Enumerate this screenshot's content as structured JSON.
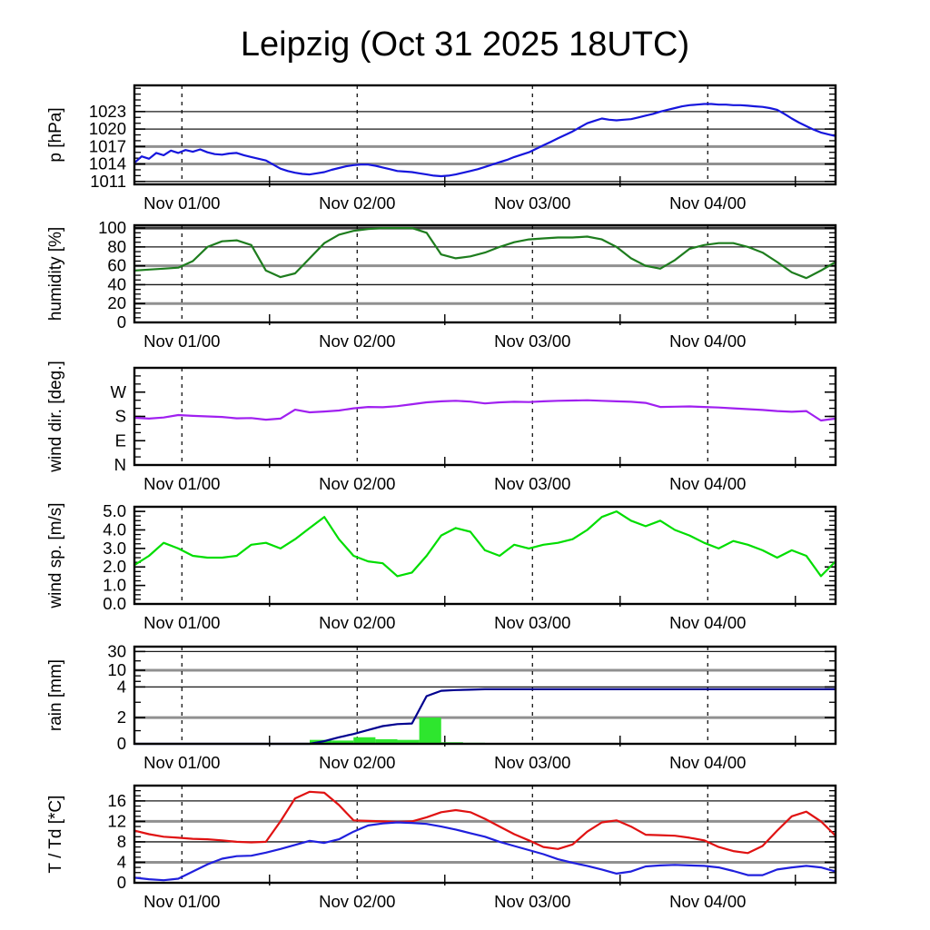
{
  "title": "Leipzig (Oct 31 2025 18UTC)",
  "colors": {
    "pressure": "#1616dd",
    "humidity": "#1e7d1e",
    "wind_dir": "#a020f0",
    "wind_speed": "#00dd00",
    "rain_line": "#00008f",
    "rain_bar": "#2ee62e",
    "temperature": "#e01212",
    "dewpoint": "#2020dd",
    "grid_thin": "#1a1a1a",
    "grid_thick": "#909090",
    "grid_dark": "#3a3a3a",
    "frame": "#000000"
  },
  "chart_data": {
    "type": "line",
    "title": "Leipzig (Oct 31 2025 18UTC)",
    "x_axis": {
      "hours_total": 96,
      "start": "Oct 31 18UTC",
      "day_tick_hours": [
        6.5,
        30.5,
        54.5,
        78.5
      ],
      "day_tick_labels": [
        "Nov 01/00",
        "Nov 02/00",
        "Nov 03/00",
        "Nov 04/00"
      ],
      "minor_tick_hours": [
        18.5,
        42.5,
        66.5,
        90.5
      ],
      "grid": "dashed-vertical-at-days"
    },
    "panels": [
      {
        "name": "pressure",
        "ylabel": "p [hPa]",
        "ylim": [
          1010.5,
          1027.5
        ],
        "minor_step": 1,
        "yticks": [
          {
            "v": 1011,
            "t": "1011",
            "g": "thin"
          },
          {
            "v": 1014,
            "t": "1014",
            "g": "thick"
          },
          {
            "v": 1017,
            "t": "1017",
            "g": "thick"
          },
          {
            "v": 1020,
            "t": "1020",
            "g": "thin"
          },
          {
            "v": 1023,
            "t": "1023",
            "g": "thin"
          }
        ],
        "series": [
          {
            "name": "pressure",
            "color_key": "pressure",
            "step_hours": 1,
            "values": [
              1014.2,
              1015.3,
              1014.9,
              1015.9,
              1015.5,
              1016.3,
              1015.9,
              1016.4,
              1016.1,
              1016.5,
              1016.0,
              1015.7,
              1015.6,
              1015.8,
              1015.9,
              1015.5,
              1015.2,
              1014.9,
              1014.6,
              1013.9,
              1013.2,
              1012.8,
              1012.5,
              1012.3,
              1012.2,
              1012.4,
              1012.6,
              1013.0,
              1013.3,
              1013.6,
              1013.8,
              1013.9,
              1013.9,
              1013.7,
              1013.4,
              1013.1,
              1012.8,
              1012.7,
              1012.6,
              1012.4,
              1012.2,
              1012.0,
              1011.9,
              1012.0,
              1012.2,
              1012.5,
              1012.8,
              1013.1,
              1013.5,
              1013.9,
              1014.3,
              1014.7,
              1015.2,
              1015.6,
              1016.0,
              1016.6,
              1017.2,
              1017.8,
              1018.4,
              1019.0,
              1019.6,
              1020.3,
              1021.0,
              1021.4,
              1021.8,
              1021.6,
              1021.5,
              1021.6,
              1021.7,
              1022.0,
              1022.3,
              1022.6,
              1023.0,
              1023.3,
              1023.6,
              1023.9,
              1024.1,
              1024.2,
              1024.3,
              1024.3,
              1024.2,
              1024.2,
              1024.1,
              1024.1,
              1024.0,
              1023.9,
              1023.8,
              1023.6,
              1023.3,
              1022.6,
              1021.8,
              1021.1,
              1020.5,
              1019.9,
              1019.4,
              1019.1,
              1018.8
            ]
          }
        ]
      },
      {
        "name": "humidity",
        "ylabel": "humidity [%]",
        "ylim": [
          0,
          103
        ],
        "minor_step": 5,
        "yticks": [
          {
            "v": 0,
            "t": "0",
            "g": "none"
          },
          {
            "v": 20,
            "t": "20",
            "g": "thick"
          },
          {
            "v": 40,
            "t": "40",
            "g": "thin"
          },
          {
            "v": 60,
            "t": "60",
            "g": "thick"
          },
          {
            "v": 80,
            "t": "80",
            "g": "thin"
          },
          {
            "v": 100,
            "t": "100",
            "g": "dark"
          }
        ],
        "series": [
          {
            "name": "humidity",
            "color_key": "humidity",
            "step_hours": 2,
            "values": [
              55,
              56,
              57,
              58,
              65,
              80,
              86,
              87,
              82,
              55,
              48,
              52,
              68,
              84,
              93,
              97,
              99,
              100,
              100,
              100,
              95,
              72,
              68,
              70,
              74,
              80,
              85,
              88,
              89,
              90,
              90,
              91,
              88,
              80,
              68,
              60,
              57,
              66,
              78,
              82,
              84,
              84,
              80,
              74,
              64,
              53,
              47,
              55,
              64
            ]
          }
        ]
      },
      {
        "name": "wind-direction",
        "ylabel": "wind dir. [deg.]",
        "ylim": [
          0,
          360
        ],
        "minor_step": 30,
        "yticks": [
          {
            "v": 0,
            "t": "N",
            "g": "none"
          },
          {
            "v": 90,
            "t": "E",
            "g": "none"
          },
          {
            "v": 180,
            "t": "S",
            "g": "none"
          },
          {
            "v": 270,
            "t": "W",
            "g": "none"
          }
        ],
        "series": [
          {
            "name": "wind-direction",
            "color_key": "wind_dir",
            "step_hours": 2,
            "values": [
              175,
              172,
              176,
              185,
              182,
              180,
              178,
              173,
              174,
              168,
              172,
              205,
              195,
              198,
              202,
              210,
              215,
              214,
              218,
              225,
              232,
              236,
              238,
              235,
              228,
              232,
              234,
              233,
              236,
              238,
              239,
              240,
              238,
              236,
              234,
              230,
              215,
              216,
              217,
              215,
              213,
              210,
              207,
              204,
              200,
              197,
              200,
              165,
              172
            ]
          }
        ]
      },
      {
        "name": "wind-speed",
        "ylabel": "wind sp. [m/s]",
        "ylim": [
          0,
          5.25
        ],
        "minor_step": 0.25,
        "yticks": [
          {
            "v": 0,
            "t": "0.0",
            "g": "none"
          },
          {
            "v": 1,
            "t": "1.0",
            "g": "none"
          },
          {
            "v": 2,
            "t": "2.0",
            "g": "none"
          },
          {
            "v": 3,
            "t": "3.0",
            "g": "none"
          },
          {
            "v": 4,
            "t": "4.0",
            "g": "none"
          },
          {
            "v": 5,
            "t": "5.0",
            "g": "none"
          }
        ],
        "series": [
          {
            "name": "wind-speed",
            "color_key": "wind_speed",
            "step_hours": 2,
            "values": [
              2.1,
              2.6,
              3.3,
              3.0,
              2.6,
              2.5,
              2.5,
              2.6,
              3.2,
              3.3,
              3.0,
              3.5,
              4.1,
              4.7,
              3.5,
              2.6,
              2.3,
              2.2,
              1.5,
              1.7,
              2.6,
              3.7,
              4.1,
              3.9,
              2.9,
              2.6,
              3.2,
              3.0,
              3.2,
              3.3,
              3.5,
              4.0,
              4.7,
              5.0,
              4.5,
              4.2,
              4.5,
              4.0,
              3.7,
              3.3,
              3.0,
              3.4,
              3.2,
              2.9,
              2.5,
              2.9,
              2.6,
              1.5,
              2.3
            ]
          }
        ]
      },
      {
        "name": "rain",
        "ylabel": "rain [mm]",
        "scale_anchors": {
          "values": [
            0,
            2,
            4,
            10,
            30,
            60
          ],
          "fracs": [
            0,
            0.27,
            0.585,
            0.757,
            0.95,
            1.0
          ]
        },
        "minor_values": [
          1,
          3,
          6,
          8,
          20
        ],
        "yticks": [
          {
            "v": 0,
            "t": "0",
            "g": "none"
          },
          {
            "v": 2,
            "t": "2",
            "g": "thick"
          },
          {
            "v": 4,
            "t": "4",
            "g": "thin"
          },
          {
            "v": 10,
            "t": "10",
            "g": "thick"
          },
          {
            "v": 30,
            "t": "30",
            "g": "thin"
          }
        ],
        "bars": {
          "name": "rain-3h",
          "color_key": "rain_bar",
          "start_hour": 24,
          "bin_hours": 3,
          "values": [
            0.3,
            0.25,
            0.5,
            0.35,
            0.3,
            2.0,
            0.12,
            0.08
          ]
        },
        "series": [
          {
            "name": "rain-accumulated",
            "color_key": "rain_line",
            "step_hours": 2,
            "values": [
              0,
              0,
              0,
              0,
              0,
              0,
              0,
              0,
              0,
              0,
              0,
              0,
              0,
              0.2,
              0.5,
              0.75,
              1.05,
              1.35,
              1.5,
              1.55,
              3.4,
              3.75,
              3.8,
              3.82,
              3.85,
              3.85,
              3.85,
              3.85,
              3.85,
              3.85,
              3.85,
              3.85,
              3.85,
              3.85,
              3.85,
              3.85,
              3.85,
              3.85,
              3.85,
              3.85,
              3.85,
              3.85,
              3.85,
              3.85,
              3.85,
              3.85,
              3.85,
              3.85,
              3.85
            ]
          }
        ]
      },
      {
        "name": "temperature",
        "ylabel": "T / Td [*C]",
        "ylim": [
          0,
          19
        ],
        "minor_step": 1,
        "yticks": [
          {
            "v": 0,
            "t": "0",
            "g": "none"
          },
          {
            "v": 4,
            "t": "4",
            "g": "thick"
          },
          {
            "v": 8,
            "t": "8",
            "g": "thin"
          },
          {
            "v": 12,
            "t": "12",
            "g": "thick"
          },
          {
            "v": 16,
            "t": "16",
            "g": "thin"
          }
        ],
        "series": [
          {
            "name": "temperature",
            "color_key": "temperature",
            "step_hours": 2,
            "values": [
              10.2,
              9.5,
              9.0,
              8.8,
              8.6,
              8.5,
              8.3,
              8.0,
              7.9,
              8.0,
              12.0,
              16.5,
              17.8,
              17.6,
              15.2,
              12.2,
              12.1,
              12.0,
              11.9,
              12.0,
              12.8,
              13.8,
              14.2,
              13.8,
              12.5,
              11.0,
              9.5,
              8.3,
              7.0,
              6.6,
              7.5,
              10.0,
              11.8,
              12.2,
              11.0,
              9.4,
              9.3,
              9.2,
              8.8,
              8.3,
              7.0,
              6.2,
              5.8,
              7.2,
              10.2,
              13.0,
              13.9,
              12.0,
              9.2
            ]
          },
          {
            "name": "dewpoint",
            "color_key": "dewpoint",
            "step_hours": 2,
            "values": [
              1.0,
              0.7,
              0.5,
              0.8,
              2.2,
              3.6,
              4.7,
              5.2,
              5.3,
              5.9,
              6.6,
              7.4,
              8.2,
              7.8,
              8.5,
              10.0,
              11.2,
              11.6,
              11.8,
              11.7,
              11.5,
              11.0,
              10.4,
              9.7,
              9.0,
              8.0,
              7.2,
              6.4,
              5.6,
              4.6,
              3.9,
              3.3,
              2.6,
              1.8,
              2.2,
              3.2,
              3.4,
              3.5,
              3.4,
              3.3,
              3.0,
              2.3,
              1.5,
              1.5,
              2.6,
              3.0,
              3.3,
              3.0,
              2.2
            ]
          }
        ]
      }
    ]
  }
}
